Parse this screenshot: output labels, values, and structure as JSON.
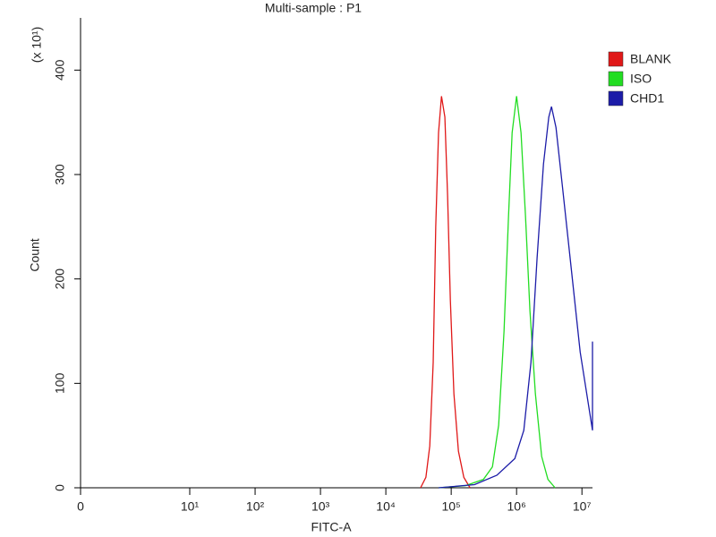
{
  "chart_data": {
    "type": "line",
    "title": "Multi-sample : P1",
    "xlabel": "FITC-A",
    "ylabel": "Count",
    "y_multiplier": "(x 10¹)",
    "xscale": "biexponential",
    "xlim": [
      0,
      14500000
    ],
    "xticks": [
      0,
      {
        "value": 10,
        "label": "10¹"
      },
      {
        "value": 100,
        "label": "10²"
      },
      {
        "value": 1000,
        "label": "10³"
      },
      {
        "value": 10000,
        "label": "10⁴"
      },
      {
        "value": 100000,
        "label": "10⁵"
      },
      {
        "value": 1000000,
        "label": "10⁶"
      },
      {
        "value": 10000000,
        "label": "10⁷"
      }
    ],
    "ylim": [
      0,
      450
    ],
    "yticks": [
      0,
      100,
      200,
      300,
      400
    ],
    "legend": "right",
    "series": [
      {
        "name": "BLANK",
        "color": "#e01818",
        "x": [
          34000,
          41000,
          47000,
          53000,
          58000,
          64000,
          71000,
          80000,
          88000,
          97000,
          110000,
          129000,
          156000,
          194000
        ],
        "values": [
          0,
          10,
          40,
          120,
          250,
          340,
          375,
          355,
          280,
          180,
          90,
          35,
          10,
          0
        ]
      },
      {
        "name": "ISO",
        "color": "#22dd22",
        "x": [
          64000,
          166000,
          311000,
          427000,
          532000,
          643000,
          753000,
          855000,
          1000000,
          1170000,
          1370000,
          1600000,
          1940000,
          2420000,
          3020000,
          3880000
        ],
        "values": [
          0,
          2,
          8,
          20,
          60,
          150,
          260,
          340,
          375,
          340,
          260,
          170,
          90,
          30,
          8,
          0
        ]
      },
      {
        "name": "CHD1",
        "color": "#1c1ca8",
        "x": [
          64000,
          227000,
          500000,
          940000,
          1290000,
          1660000,
          2060000,
          2580000,
          3110000,
          3420000,
          4010000,
          5000000,
          6860000,
          9400000,
          14500000,
          14500000
        ],
        "values": [
          0,
          3,
          12,
          28,
          55,
          120,
          220,
          310,
          355,
          365,
          345,
          290,
          210,
          130,
          55,
          140
        ]
      }
    ]
  }
}
